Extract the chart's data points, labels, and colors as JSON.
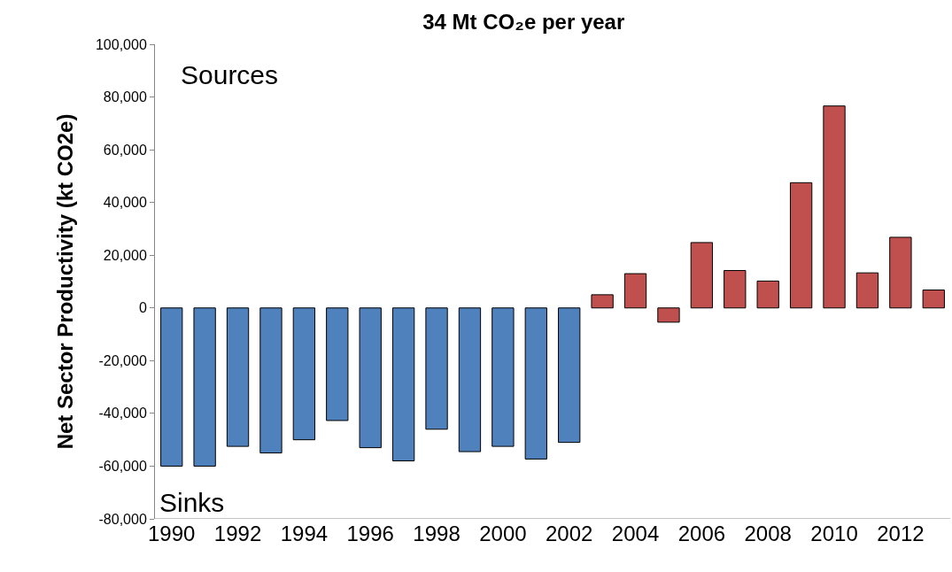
{
  "chart_data": {
    "type": "bar",
    "title": "34 Mt CO₂e per year",
    "ylabel": "Net Sector Productivity (kt CO2e)",
    "categories": [
      "1990",
      null,
      "1992",
      null,
      "1994",
      null,
      "1996",
      null,
      "1998",
      null,
      "2000",
      null,
      "2002",
      null,
      "2004",
      null,
      "2006",
      null,
      "2008",
      null,
      "2010",
      null,
      "2012",
      null
    ],
    "values": [
      -60000,
      -60000,
      -52500,
      -55000,
      -50000,
      -42700,
      -53000,
      -58000,
      -46000,
      -54500,
      -52500,
      -57300,
      -51000,
      5000,
      13000,
      -5400,
      24800,
      14200,
      10200,
      47500,
      76600,
      13300,
      26800,
      6800
    ],
    "colors": [
      "#4f81bd",
      "#4f81bd",
      "#4f81bd",
      "#4f81bd",
      "#4f81bd",
      "#4f81bd",
      "#4f81bd",
      "#4f81bd",
      "#4f81bd",
      "#4f81bd",
      "#4f81bd",
      "#4f81bd",
      "#4f81bd",
      "#c0504d",
      "#c0504d",
      "#c0504d",
      "#c0504d",
      "#c0504d",
      "#c0504d",
      "#c0504d",
      "#c0504d",
      "#c0504d",
      "#c0504d",
      "#c0504d"
    ],
    "ylim": [
      -80000,
      100000
    ],
    "yticks": [
      {
        "value": -80000,
        "label": "-80,000"
      },
      {
        "value": -60000,
        "label": "-60,000"
      },
      {
        "value": -40000,
        "label": "-40,000"
      },
      {
        "value": -20000,
        "label": "-20,000"
      },
      0,
      {
        "value": 20000,
        "label": "20,000"
      },
      {
        "value": 40000,
        "label": "40,000"
      },
      {
        "value": 60000,
        "label": "60,000"
      },
      {
        "value": 80000,
        "label": "80,000"
      },
      {
        "value": 100000,
        "label": "100,000"
      }
    ],
    "grid": false,
    "legend": false,
    "annotations": [
      "Sources",
      "Sinks"
    ]
  }
}
